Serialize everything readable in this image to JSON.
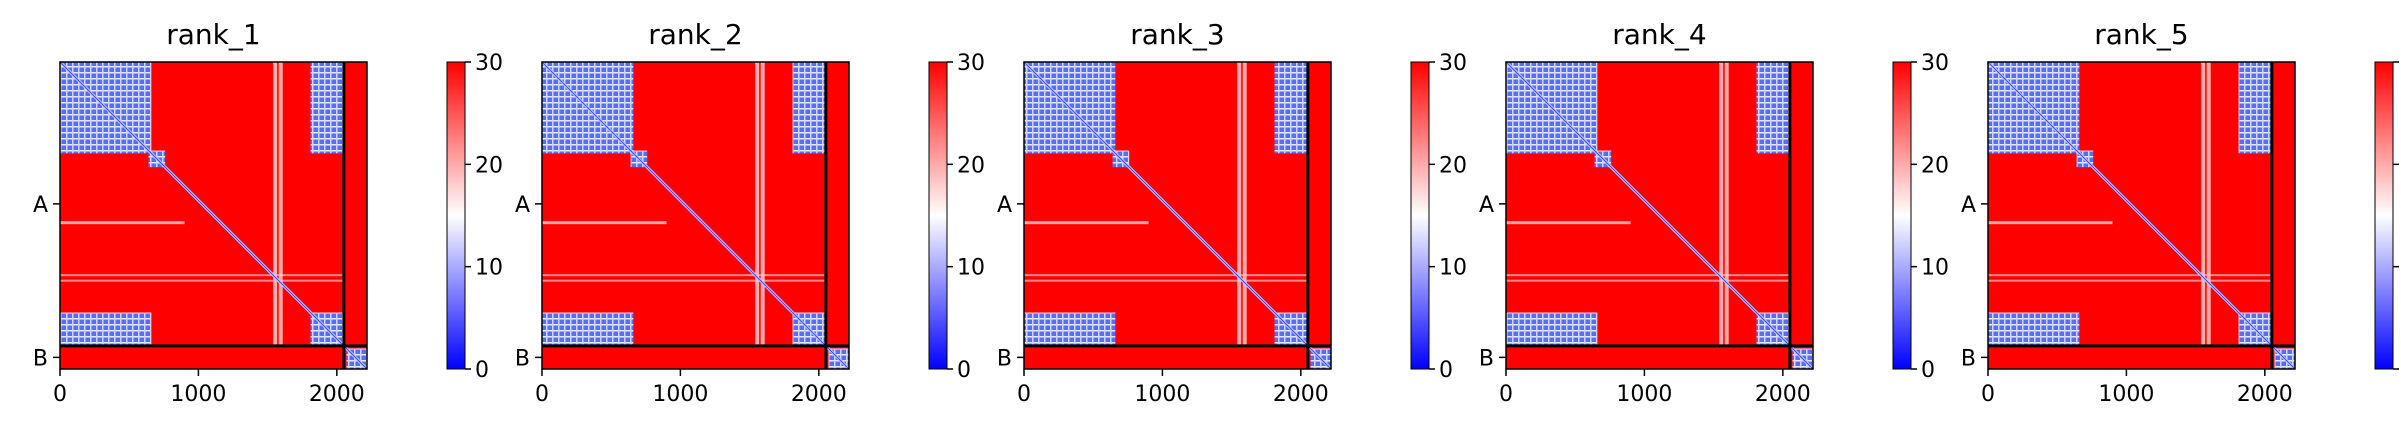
{
  "chart_data": {
    "type": "heatmap",
    "colormap": [
      "#0000ff",
      "#ffffff",
      "#ff0000"
    ],
    "color_range": [
      0,
      30
    ],
    "colorbar_ticks": [
      "0",
      "10",
      "20",
      "30"
    ],
    "x_ticks": [
      {
        "value": 0,
        "label": "0"
      },
      {
        "value": 1000,
        "label": "1000"
      },
      {
        "value": 2000,
        "label": "2000"
      }
    ],
    "xlim": [
      0,
      2218
    ],
    "ylim": [
      2218,
      0
    ],
    "chain_boundary": 2051,
    "y_tick_labels": [
      {
        "value": 1025,
        "label": "A"
      },
      {
        "value": 2134,
        "label": "B"
      }
    ],
    "panels": [
      {
        "title": "rank_1"
      },
      {
        "title": "rank_2"
      },
      {
        "title": "rank_3"
      },
      {
        "title": "rank_4"
      },
      {
        "title": "rank_5"
      }
    ],
    "blue_domains": [
      {
        "x": [
          0,
          660
        ],
        "y": [
          0,
          660
        ]
      },
      {
        "x": [
          1810,
          2051
        ],
        "y": [
          0,
          660
        ]
      },
      {
        "x": [
          0,
          660
        ],
        "y": [
          1810,
          2051
        ]
      },
      {
        "x": [
          1810,
          2051
        ],
        "y": [
          1810,
          2051
        ]
      },
      {
        "x": [
          640,
          760
        ],
        "y": [
          640,
          760
        ]
      },
      {
        "x": [
          2070,
          2218
        ],
        "y": [
          2070,
          2218
        ]
      }
    ]
  }
}
